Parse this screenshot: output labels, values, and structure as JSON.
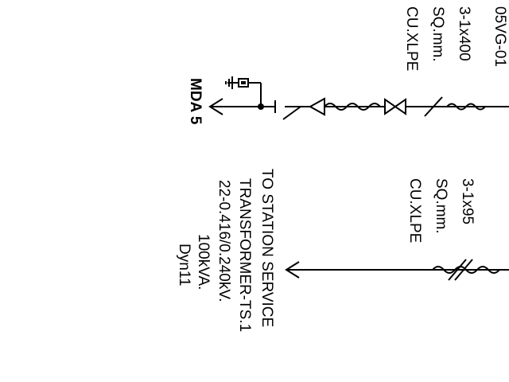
{
  "colors": {
    "line": "#000000",
    "background": "#ffffff"
  },
  "feeder_top": {
    "label_cutoff": "05VG-01",
    "cable": [
      "3-1x400",
      "SQ.mm.",
      "CU.XLPE"
    ],
    "outgoing_label": "MDA 5"
  },
  "feeder_bottom": {
    "cable": [
      "3-1x95",
      "SQ.mm.",
      "CU.XLPE"
    ],
    "destination": [
      "TO STATION SERVICE",
      "TRANSFORMER-TS.1",
      "22-0.416/0.240kV.",
      "100kVA.",
      "Dyn11"
    ]
  },
  "icons": [
    "arrow-head-icon",
    "cable-termination-icon",
    "disconnect-switch-icon",
    "earthing-switch-icon",
    "surge-arrester-icon"
  ]
}
